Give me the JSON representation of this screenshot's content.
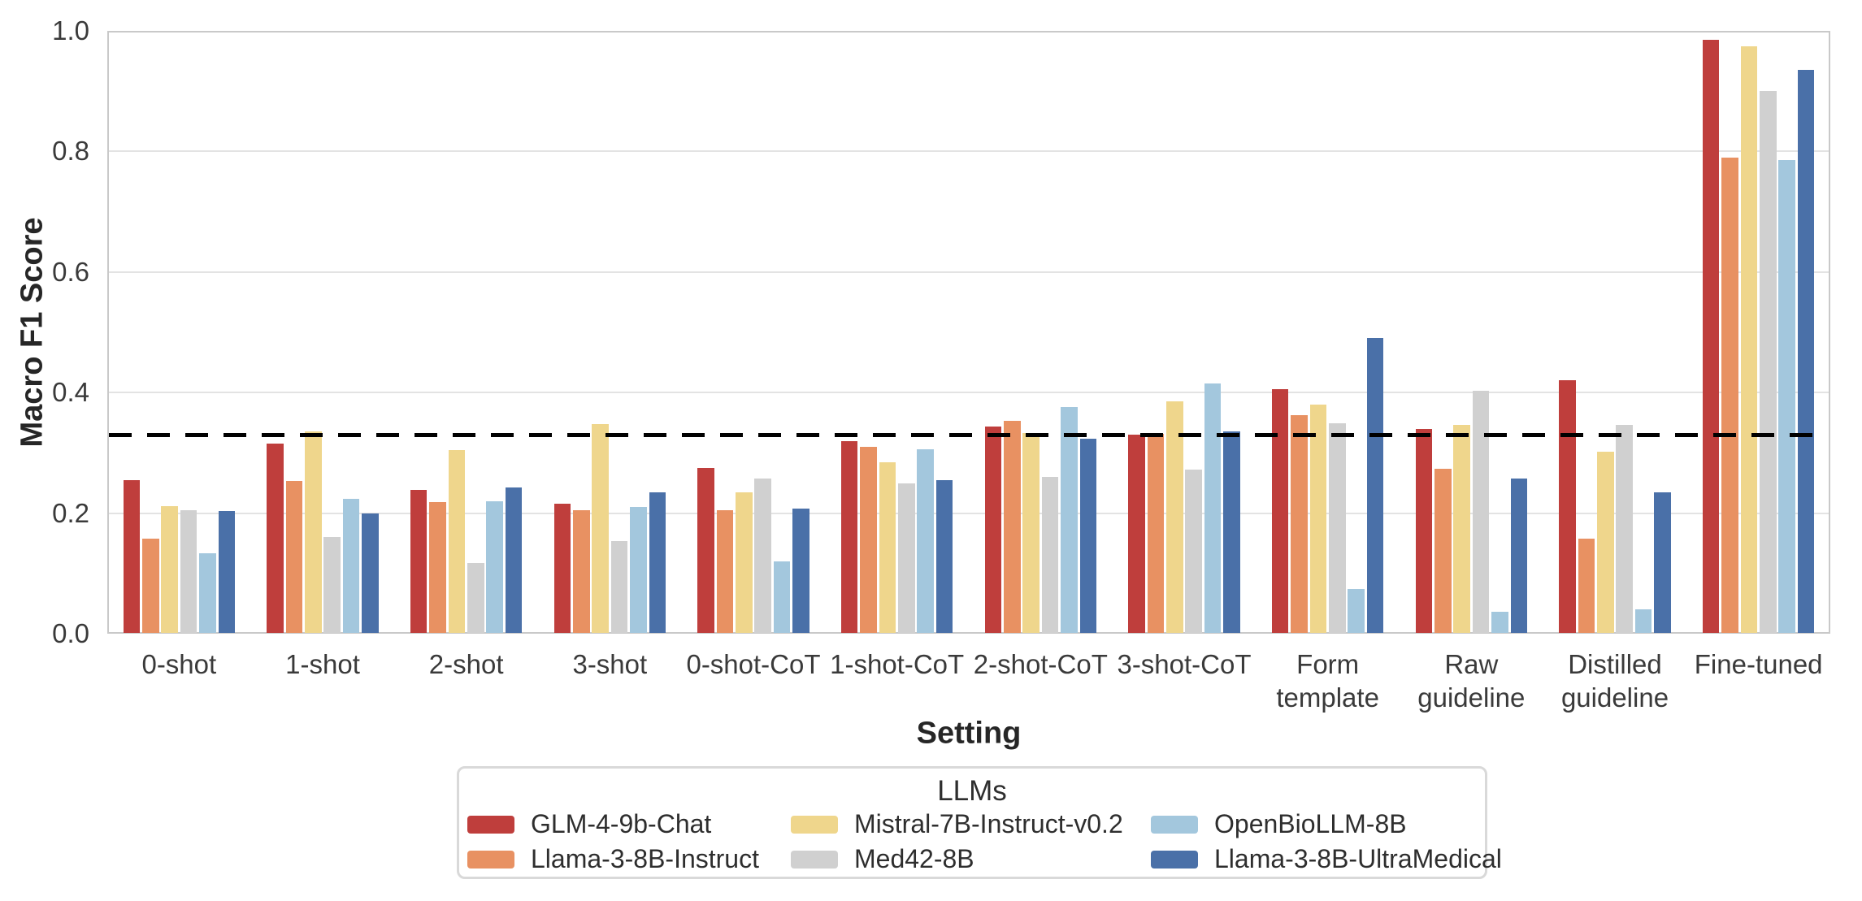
{
  "chart_data": {
    "type": "bar",
    "title": "",
    "xlabel": "Setting",
    "ylabel": "Macro F1 Score",
    "ylim": [
      0.0,
      1.0
    ],
    "grid": true,
    "yticks": [
      {
        "value": 0.0,
        "label": "0.0"
      },
      {
        "value": 0.2,
        "label": "0.2"
      },
      {
        "value": 0.4,
        "label": "0.4"
      },
      {
        "value": 0.6,
        "label": "0.6"
      },
      {
        "value": 0.8,
        "label": "0.8"
      },
      {
        "value": 1.0,
        "label": "1.0"
      }
    ],
    "categories": [
      "0-shot",
      "1-shot",
      "2-shot",
      "3-shot",
      "0-shot-CoT",
      "1-shot-CoT",
      "2-shot-CoT",
      "3-shot-CoT",
      "Form\ntemplate",
      "Raw\nguideline",
      "Distilled\nguideline",
      "Fine-tuned"
    ],
    "series": [
      {
        "name": "GLM-4-9b-Chat",
        "color": "#bf3e3c",
        "values": [
          0.255,
          0.315,
          0.238,
          0.215,
          0.275,
          0.32,
          0.343,
          0.33,
          0.405,
          0.34,
          0.42,
          0.985
        ]
      },
      {
        "name": "Llama-3-8B-Instruct",
        "color": "#e89162",
        "values": [
          0.158,
          0.253,
          0.218,
          0.205,
          0.205,
          0.31,
          0.353,
          0.331,
          0.363,
          0.273,
          0.158,
          0.79
        ]
      },
      {
        "name": "Mistral-7B-Instruct-v0.2",
        "color": "#efd68c",
        "values": [
          0.211,
          0.336,
          0.304,
          0.348,
          0.234,
          0.284,
          0.333,
          0.385,
          0.38,
          0.347,
          0.302,
          0.975
        ]
      },
      {
        "name": "Med42-8B",
        "color": "#d0d0d0",
        "values": [
          0.205,
          0.16,
          0.117,
          0.154,
          0.258,
          0.249,
          0.26,
          0.272,
          0.349,
          0.403,
          0.347,
          0.9
        ]
      },
      {
        "name": "OpenBioLLM-8B",
        "color": "#a3c7dd",
        "values": [
          0.133,
          0.224,
          0.22,
          0.21,
          0.12,
          0.306,
          0.376,
          0.415,
          0.074,
          0.036,
          0.04,
          0.786
        ]
      },
      {
        "name": "Llama-3-8B-UltraMedical",
        "color": "#4a70a8",
        "values": [
          0.203,
          0.199,
          0.242,
          0.234,
          0.208,
          0.255,
          0.324,
          0.335,
          0.49,
          0.257,
          0.235,
          0.935
        ]
      }
    ],
    "reference_line": {
      "value": 0.33,
      "style": "dashed",
      "color": "#000000"
    },
    "legend": {
      "title": "LLMs",
      "position": "bottom-center",
      "columns": 2
    }
  }
}
